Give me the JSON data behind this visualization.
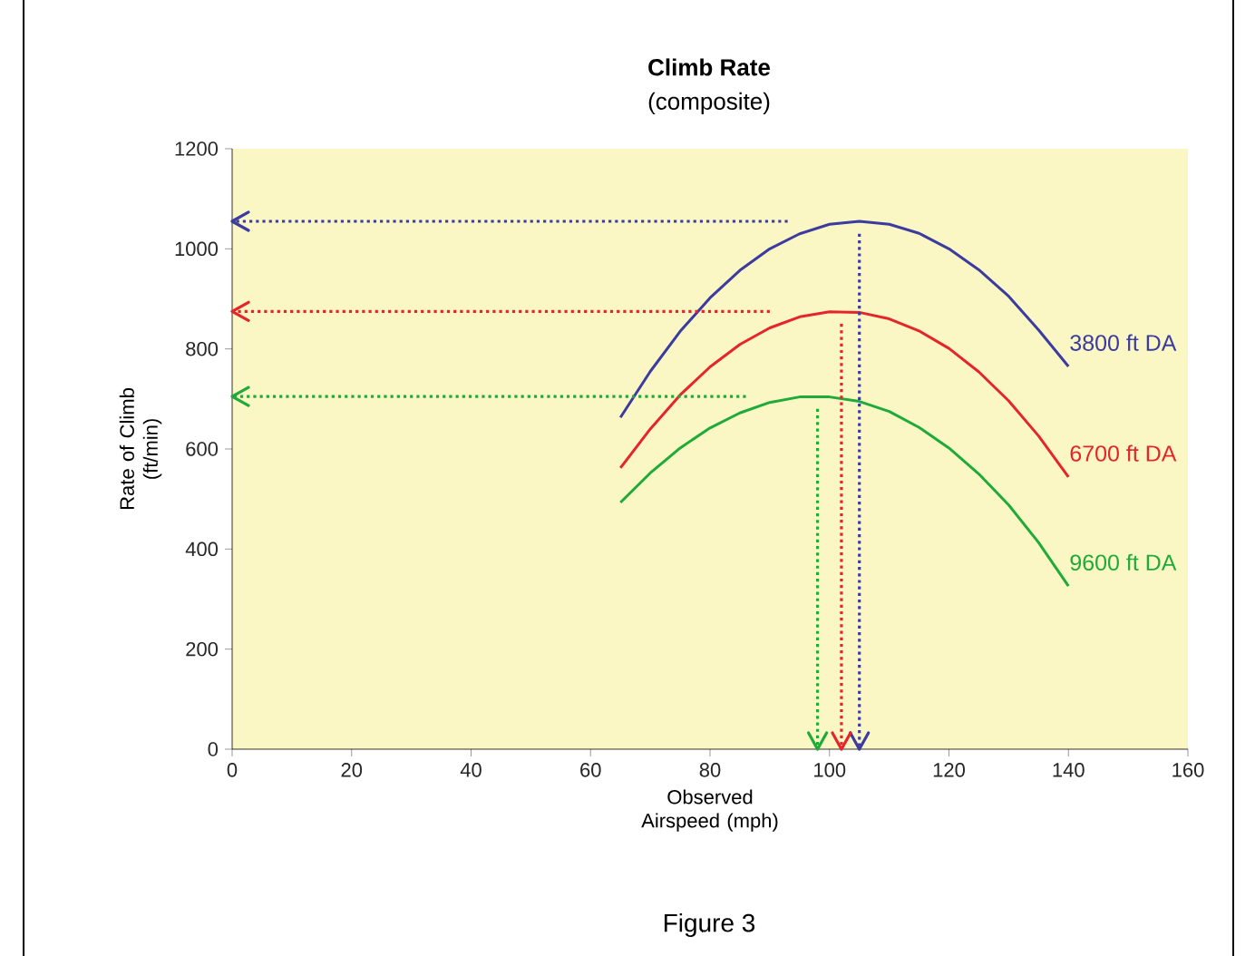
{
  "chart_data": {
    "type": "line",
    "title": "Climb Rate",
    "subtitle": "(composite)",
    "xlabel": "Observed Airspeed (mph)",
    "ylabel": "Rate of Climb (ft/min)",
    "x": [
      65,
      70,
      75,
      80,
      85,
      90,
      95,
      100,
      105,
      110,
      115,
      120,
      125,
      130,
      135,
      140
    ],
    "series": [
      {
        "name": "3800 ft DA",
        "color": "#3b3ba0",
        "values": [
          663,
          755,
          835,
          902,
          957,
          1000,
          1030,
          1049,
          1055,
          1049,
          1031,
          1000,
          958,
          905,
          838,
          765
        ]
      },
      {
        "name": "6700 ft DA",
        "color": "#e5252b",
        "values": [
          562,
          640,
          708,
          764,
          809,
          842,
          864,
          874,
          873,
          860,
          836,
          801,
          754,
          696,
          626,
          544
        ]
      },
      {
        "name": "9600 ft DA",
        "color": "#1faa3a",
        "values": [
          493,
          552,
          602,
          642,
          672,
          693,
          704,
          704,
          695,
          675,
          643,
          602,
          550,
          488,
          413,
          326
        ]
      }
    ],
    "xlim": [
      0,
      160
    ],
    "xticks": [
      0,
      20,
      40,
      60,
      80,
      100,
      120,
      140,
      160
    ],
    "ylim": [
      0,
      1200
    ],
    "yticks": [
      0,
      200,
      400,
      600,
      800,
      1000,
      1200
    ],
    "ref_lines": [
      {
        "axis": "y",
        "value": 1055,
        "color": "#3b3ba0",
        "line_style": "dotted"
      },
      {
        "axis": "y",
        "value": 875,
        "color": "#e5252b",
        "line_style": "dotted"
      },
      {
        "axis": "y",
        "value": 705,
        "color": "#1faa3a",
        "line_style": "dotted"
      },
      {
        "axis": "x",
        "value": 105,
        "color": "#3b3ba0",
        "line_style": "dotted"
      },
      {
        "axis": "x",
        "value": 102,
        "color": "#e5252b",
        "line_style": "dotted"
      },
      {
        "axis": "x",
        "value": 98,
        "color": "#1faa3a",
        "line_style": "dotted"
      }
    ],
    "annotations": [
      "Figure 3"
    ],
    "legend": false,
    "grid": false,
    "marker": "none",
    "line_style": "solid"
  }
}
